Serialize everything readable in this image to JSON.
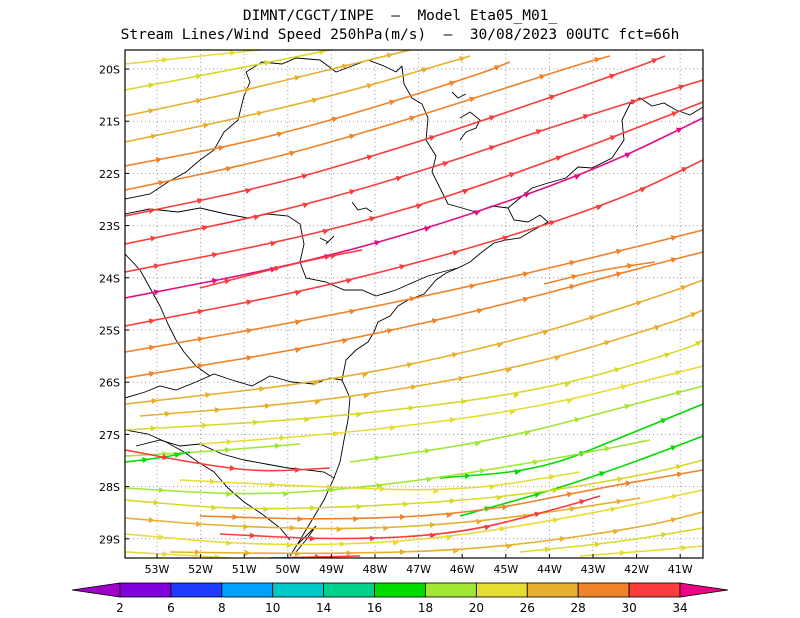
{
  "header": {
    "line1": "DIMNT/CGCT/INPE  –  Model Eta05_M01_",
    "line2": "Stream Lines/Wind Speed 250hPa(m/s)  –  30/08/2023 00UTC fct=66h"
  },
  "map": {
    "lat_labels": [
      "20S",
      "21S",
      "22S",
      "23S",
      "24S",
      "25S",
      "26S",
      "27S",
      "28S",
      "29S"
    ],
    "lon_labels": [
      "53W",
      "52W",
      "51W",
      "50W",
      "49W",
      "48W",
      "47W",
      "46W",
      "45W",
      "44W",
      "43W",
      "42W",
      "41W"
    ],
    "frame_color": "#000000",
    "grid_style": "dotted gray",
    "coastline_color": "#000000"
  },
  "colorbar": {
    "labels": [
      "2",
      "6",
      "8",
      "10",
      "14",
      "16",
      "18",
      "20",
      "26",
      "28",
      "30",
      "34"
    ],
    "colors": [
      "#a000c8",
      "#8200dc",
      "#1e3cff",
      "#00a0ff",
      "#00c8c8",
      "#00d28c",
      "#00dc00",
      "#a0e632",
      "#e6dc32",
      "#e6af2d",
      "#f08228",
      "#fa3c3c",
      "#f00082"
    ]
  }
}
